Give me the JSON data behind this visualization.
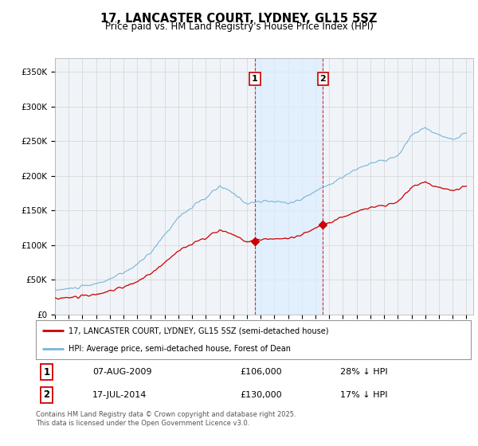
{
  "title": "17, LANCASTER COURT, LYDNEY, GL15 5SZ",
  "subtitle": "Price paid vs. HM Land Registry's House Price Index (HPI)",
  "legend_line1": "17, LANCASTER COURT, LYDNEY, GL15 5SZ (semi-detached house)",
  "legend_line2": "HPI: Average price, semi-detached house, Forest of Dean",
  "footnote": "Contains HM Land Registry data © Crown copyright and database right 2025.\nThis data is licensed under the Open Government Licence v3.0.",
  "hpi_color": "#7ab4d8",
  "price_color": "#cc0000",
  "shading_color": "#ddeeff",
  "vline_color": "#cc0000",
  "bg_color": "#f0f4f8",
  "ylim": [
    0,
    370000
  ],
  "yticks": [
    0,
    50000,
    100000,
    150000,
    200000,
    250000,
    300000,
    350000
  ],
  "ytick_labels": [
    "£0",
    "£50K",
    "£100K",
    "£150K",
    "£200K",
    "£250K",
    "£300K",
    "£350K"
  ],
  "sale_points": [
    {
      "year": 2009.58,
      "price": 106000,
      "label": "1"
    },
    {
      "year": 2014.54,
      "price": 130000,
      "label": "2"
    }
  ],
  "shade_start": 2009.58,
  "shade_end": 2014.54,
  "xmin": 1995,
  "xmax": 2025.5
}
